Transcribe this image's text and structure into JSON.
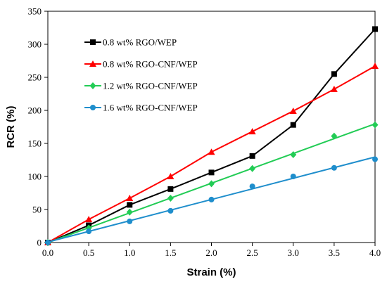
{
  "chart_data": {
    "type": "line",
    "xlabel": "Strain (%)",
    "ylabel": "RCR (%)",
    "xlim": [
      0.0,
      4.0
    ],
    "ylim": [
      0,
      350
    ],
    "x_ticks": [
      "0.0",
      "0.5",
      "1.0",
      "1.5",
      "2.0",
      "2.5",
      "3.0",
      "3.5",
      "4.0"
    ],
    "y_ticks": [
      "0",
      "50",
      "100",
      "150",
      "200",
      "250",
      "300",
      "350"
    ],
    "legend_position": "upper-left",
    "grid": false,
    "series": [
      {
        "name": "0.8 wt% RGO/WEP",
        "color": "#000000",
        "marker": "square",
        "fit": "polyline",
        "x": [
          0,
          0.5,
          1.0,
          1.5,
          2.0,
          2.5,
          3.0,
          3.5,
          4.0
        ],
        "y": [
          0,
          26,
          57,
          81,
          106,
          131,
          178,
          255,
          323
        ]
      },
      {
        "name": "0.8 wt% RGO-CNF/WEP",
        "color": "#ff0000",
        "marker": "triangle",
        "fit": "polyline",
        "x": [
          0,
          0.5,
          1.0,
          1.5,
          2.0,
          2.5,
          3.0,
          3.5,
          4.0
        ],
        "y": [
          0,
          35,
          67,
          100,
          137,
          168,
          199,
          232,
          267
        ]
      },
      {
        "name": "1.2 wt% RGO-CNF/WEP",
        "color": "#22cc55",
        "marker": "diamond",
        "fit": "linear",
        "x": [
          0,
          0.5,
          1.0,
          1.5,
          2.0,
          2.5,
          3.0,
          3.5,
          4.0
        ],
        "y": [
          0,
          22,
          46,
          67,
          89,
          112,
          133,
          161,
          178
        ]
      },
      {
        "name": "1.6 wt% RGO-CNF/WEP",
        "color": "#1f8ecc",
        "marker": "circle",
        "fit": "linear",
        "x": [
          0,
          0.5,
          1.0,
          1.5,
          2.0,
          2.5,
          3.0,
          3.5,
          4.0
        ],
        "y": [
          0,
          17,
          32,
          48,
          65,
          85,
          100,
          113,
          126
        ]
      }
    ]
  }
}
